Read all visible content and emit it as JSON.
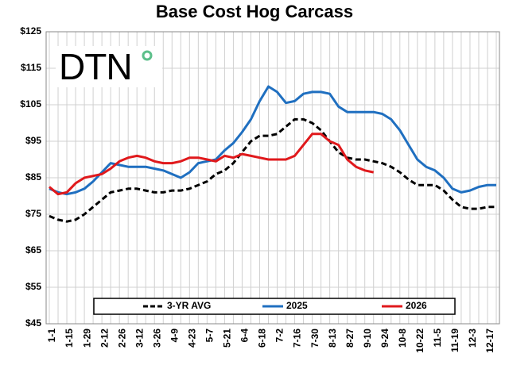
{
  "logo": "DTN",
  "chart_data": {
    "type": "line",
    "title": "Base Cost Hog Carcass",
    "categories": [
      "1-1",
      null,
      "1-15",
      null,
      "1-29",
      null,
      "2-12",
      null,
      "2-26",
      null,
      "3-12",
      null,
      "3-26",
      null,
      "4-9",
      null,
      "4-23",
      null,
      "5-7",
      null,
      "5-21",
      null,
      "6-4",
      null,
      "6-18",
      null,
      "7-2",
      null,
      "7-16",
      null,
      "7-30",
      null,
      "8-13",
      null,
      "8-27",
      null,
      "9-10",
      null,
      "9-24",
      null,
      "10-8",
      null,
      "10-22",
      null,
      "11-5",
      null,
      "11-19",
      null,
      "12-3",
      null,
      "12-17",
      null
    ],
    "series": [
      {
        "name": "3-YR AVG",
        "color": "#000000",
        "dashed": true,
        "values": [
          74.5,
          73.5,
          73,
          73.5,
          75,
          77,
          79,
          81,
          81.5,
          82,
          82,
          81.5,
          81,
          81,
          81.5,
          81.5,
          82,
          83,
          84,
          86,
          87,
          89,
          92,
          95,
          96.5,
          96.5,
          97,
          99,
          101,
          101,
          100,
          98,
          95,
          92,
          90.5,
          90,
          90,
          89.5,
          89,
          88,
          86.5,
          84.5,
          83,
          83,
          83,
          81.5,
          79,
          77,
          76.5,
          76.5,
          77,
          77
        ]
      },
      {
        "name": "2025",
        "color": "#1f6fc0",
        "values": [
          82,
          81,
          80.5,
          81,
          82,
          84,
          86.5,
          89,
          88.5,
          88,
          88,
          88,
          87.5,
          87,
          86,
          85,
          86.5,
          89,
          89.5,
          90,
          92.5,
          94.5,
          97.5,
          101,
          106,
          110,
          108.5,
          105.5,
          106,
          108,
          108.5,
          108.5,
          108,
          104.5,
          103,
          103,
          103,
          103,
          102.5,
          101,
          98,
          94,
          90,
          88,
          87,
          85,
          82,
          81,
          81.5,
          82.5,
          83,
          83
        ]
      },
      {
        "name": "2026",
        "color": "#e0191c",
        "values": [
          82.5,
          80.5,
          81,
          83.5,
          85,
          85.5,
          86,
          87.5,
          89.5,
          90.5,
          91,
          90.5,
          89.5,
          89,
          89,
          89.5,
          90.5,
          90.5,
          90,
          89.5,
          91,
          90.5,
          91.5,
          91,
          90.5,
          90,
          90,
          90,
          91,
          94,
          97,
          97,
          95,
          94,
          90,
          88,
          87,
          86.5,
          null,
          null,
          null,
          null,
          null,
          null,
          null,
          null,
          null,
          null,
          null,
          null,
          null,
          null
        ]
      }
    ],
    "ylim": [
      45,
      125
    ],
    "yticks": [
      {
        "value": 45,
        "label": "$45"
      },
      {
        "value": 55,
        "label": "$55"
      },
      {
        "value": 65,
        "label": "$65"
      },
      {
        "value": 75,
        "label": "$75"
      },
      {
        "value": 85,
        "label": "$85"
      },
      {
        "value": 95,
        "label": "$95"
      },
      {
        "value": 105,
        "label": "$105"
      },
      {
        "value": 115,
        "label": "$115"
      },
      {
        "value": 125,
        "label": "$125"
      }
    ],
    "grid": true,
    "legend": "bottom"
  }
}
